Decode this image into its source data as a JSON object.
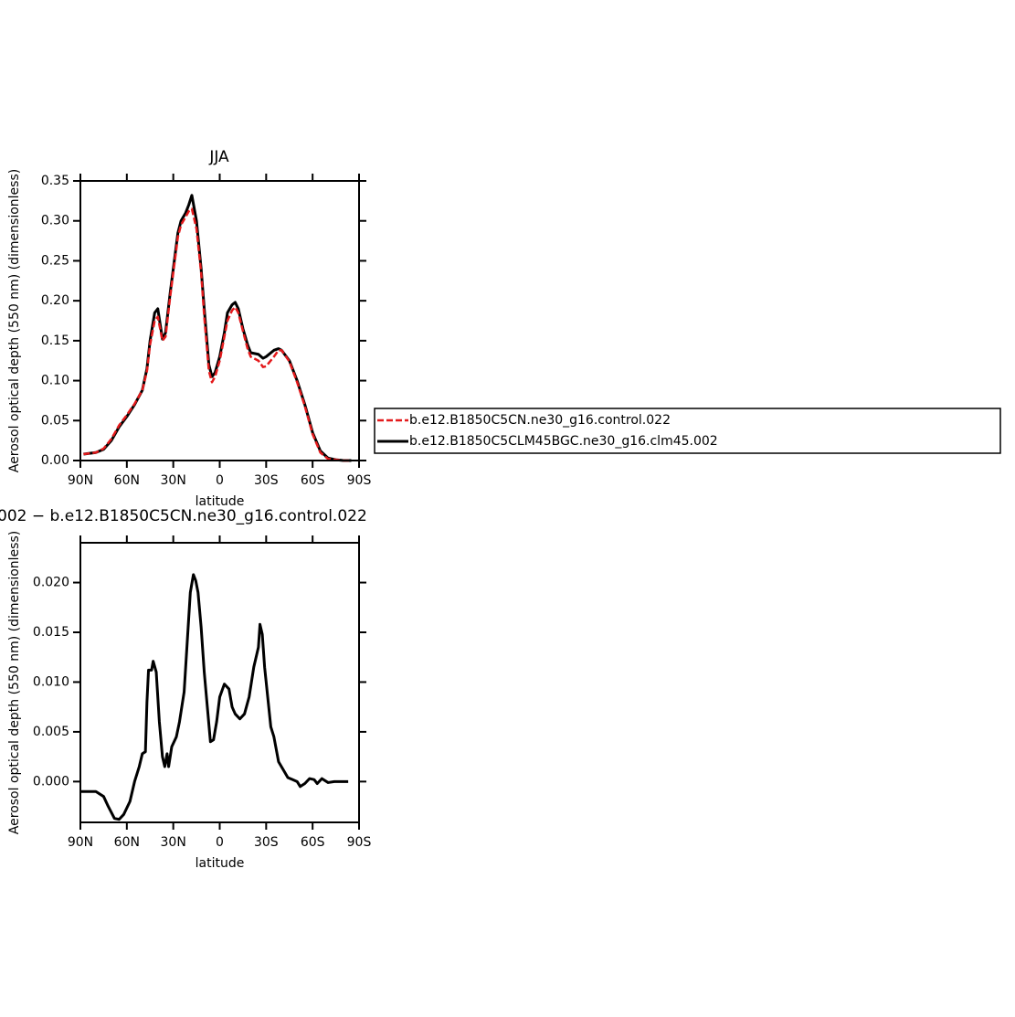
{
  "chart_data": [
    {
      "type": "line",
      "title": "JJA",
      "xlabel": "latitude",
      "ylabel": "Aerosol optical depth (550 nm) (dimensionless)",
      "xlim": [
        90,
        -90
      ],
      "xticks": [
        {
          "value": 90,
          "label": "90N"
        },
        {
          "value": 60,
          "label": "60N"
        },
        {
          "value": 30,
          "label": "30N"
        },
        {
          "value": 0,
          "label": "0"
        },
        {
          "value": -30,
          "label": "30S"
        },
        {
          "value": -60,
          "label": "60S"
        },
        {
          "value": -90,
          "label": "90S"
        }
      ],
      "ylim": [
        0,
        0.35
      ],
      "yticks": [
        {
          "value": 0,
          "label": "0.00"
        },
        {
          "value": 0.05,
          "label": "0.05"
        },
        {
          "value": 0.1,
          "label": "0.10"
        },
        {
          "value": 0.15,
          "label": "0.15"
        },
        {
          "value": 0.2,
          "label": "0.20"
        },
        {
          "value": 0.25,
          "label": "0.25"
        },
        {
          "value": 0.3,
          "label": "0.30"
        },
        {
          "value": 0.35,
          "label": "0.35"
        }
      ],
      "x": [
        88,
        80,
        75,
        70,
        65,
        60,
        55,
        50,
        47,
        45,
        42,
        40,
        37,
        35,
        32,
        30,
        27,
        25,
        22,
        20,
        18,
        15,
        12,
        10,
        7,
        5,
        3,
        0,
        -3,
        -5,
        -8,
        -10,
        -12,
        -15,
        -18,
        -20,
        -25,
        -28,
        -30,
        -35,
        -38,
        -40,
        -45,
        -50,
        -55,
        -60,
        -65,
        -70,
        -75,
        -80,
        -85
      ],
      "legend": true,
      "series": [
        {
          "name": "b.e12.B1850C5CN.ne30_g16.control.022",
          "color": "#e41a1c",
          "dashed": true,
          "values": [
            0.008,
            0.01,
            0.015,
            0.027,
            0.044,
            0.057,
            0.071,
            0.088,
            0.112,
            0.145,
            0.175,
            0.18,
            0.15,
            0.155,
            0.205,
            0.235,
            0.28,
            0.295,
            0.305,
            0.312,
            0.315,
            0.29,
            0.235,
            0.18,
            0.112,
            0.098,
            0.105,
            0.125,
            0.155,
            0.175,
            0.188,
            0.192,
            0.185,
            0.162,
            0.14,
            0.13,
            0.125,
            0.117,
            0.118,
            0.13,
            0.138,
            0.138,
            0.124,
            0.098,
            0.068,
            0.033,
            0.01,
            0.002,
            0.001,
            0.0,
            0.0
          ]
        },
        {
          "name": "b.e12.B1850C5CLM45BGC.ne30_g16.clm45.002",
          "color": "#000000",
          "dashed": false,
          "values": [
            0.008,
            0.01,
            0.014,
            0.025,
            0.042,
            0.055,
            0.07,
            0.088,
            0.115,
            0.15,
            0.185,
            0.19,
            0.152,
            0.16,
            0.21,
            0.24,
            0.285,
            0.3,
            0.31,
            0.32,
            0.332,
            0.3,
            0.24,
            0.19,
            0.12,
            0.105,
            0.11,
            0.13,
            0.16,
            0.185,
            0.195,
            0.198,
            0.19,
            0.165,
            0.145,
            0.135,
            0.133,
            0.128,
            0.13,
            0.138,
            0.14,
            0.138,
            0.125,
            0.1,
            0.07,
            0.035,
            0.012,
            0.003,
            0.001,
            0.0,
            0.0
          ]
        }
      ]
    },
    {
      "type": "line",
      "title": "002 − b.e12.B1850C5CN.ne30_g16.control.022",
      "xlabel": "latitude",
      "ylabel": "Aerosol optical depth (550 nm) (dimensionless)",
      "xlim": [
        90,
        -90
      ],
      "xticks": [
        {
          "value": 90,
          "label": "90N"
        },
        {
          "value": 60,
          "label": "60N"
        },
        {
          "value": 30,
          "label": "30N"
        },
        {
          "value": 0,
          "label": "0"
        },
        {
          "value": -30,
          "label": "30S"
        },
        {
          "value": -60,
          "label": "60S"
        },
        {
          "value": -90,
          "label": "90S"
        }
      ],
      "ylim": [
        -0.0041,
        0.024
      ],
      "yticks": [
        {
          "value": 0,
          "label": "0.000"
        },
        {
          "value": 0.005,
          "label": "0.005"
        },
        {
          "value": 0.01,
          "label": "0.010"
        },
        {
          "value": 0.015,
          "label": "0.015"
        },
        {
          "value": 0.02,
          "label": "0.020"
        }
      ],
      "x": [
        90,
        80,
        75,
        72,
        68,
        65,
        62,
        58,
        55,
        52,
        50,
        48,
        47,
        46,
        44,
        43,
        41,
        39,
        37,
        35.5,
        34,
        33,
        31,
        28,
        26,
        23,
        21,
        19,
        17,
        15.5,
        14,
        12,
        10,
        8,
        6,
        4,
        2,
        0,
        -3,
        -6,
        -8,
        -10,
        -13,
        -16,
        -19,
        -22,
        -25,
        -26,
        -27.5,
        -29,
        -31,
        -33,
        -35,
        -38,
        -41,
        -44,
        -47,
        -50,
        -52,
        -55,
        -58,
        -61,
        -63,
        -66,
        -70,
        -74,
        -78,
        -83
      ],
      "legend": false,
      "series": [
        {
          "color": "#000000",
          "dashed": false,
          "values": [
            -0.001,
            -0.001,
            -0.0015,
            -0.0025,
            -0.0037,
            -0.0038,
            -0.0033,
            -0.002,
            0.0,
            0.0015,
            0.0028,
            0.003,
            0.008,
            0.0112,
            0.0112,
            0.0121,
            0.011,
            0.006,
            0.0025,
            0.0015,
            0.0028,
            0.0015,
            0.0035,
            0.0045,
            0.006,
            0.009,
            0.014,
            0.019,
            0.0208,
            0.0202,
            0.019,
            0.0155,
            0.011,
            0.0075,
            0.004,
            0.0042,
            0.006,
            0.0085,
            0.0098,
            0.0093,
            0.0075,
            0.0068,
            0.0063,
            0.0068,
            0.0085,
            0.0115,
            0.0135,
            0.0158,
            0.0148,
            0.0115,
            0.0085,
            0.0055,
            0.0045,
            0.002,
            0.0012,
            0.0004,
            0.0002,
            0.0,
            -0.0005,
            -0.0002,
            0.0003,
            0.0002,
            -0.0002,
            0.0003,
            -0.0001,
            0.0,
            0.0,
            0.0
          ]
        }
      ]
    }
  ]
}
